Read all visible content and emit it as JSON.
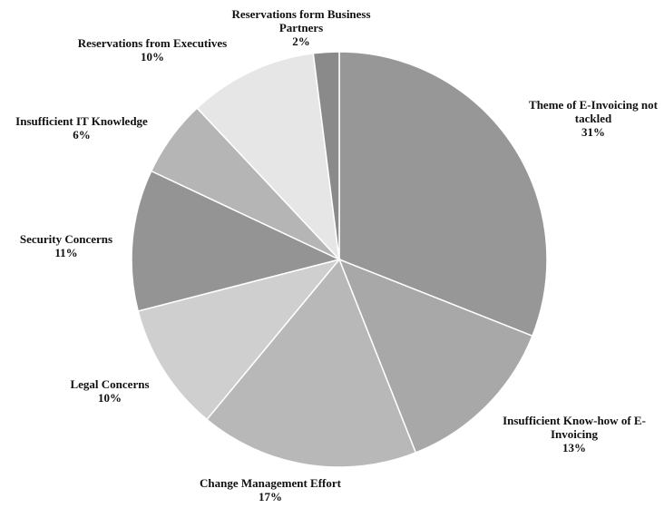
{
  "chart_data": {
    "type": "pie",
    "title": "",
    "slices": [
      {
        "label": [
          "Theme of E-Invoicing not",
          "tackled"
        ],
        "value": 31,
        "percent_label": "31%",
        "color": "#979797"
      },
      {
        "label": [
          "Insufficient Know-how of E-",
          "Invoicing"
        ],
        "value": 13,
        "percent_label": "13%",
        "color": "#a8a8a8"
      },
      {
        "label": [
          "Change Management Effort"
        ],
        "value": 17,
        "percent_label": "17%",
        "color": "#b8b8b8"
      },
      {
        "label": [
          "Legal Concerns"
        ],
        "value": 10,
        "percent_label": "10%",
        "color": "#cfcfcf"
      },
      {
        "label": [
          "Security Concerns"
        ],
        "value": 11,
        "percent_label": "11%",
        "color": "#949494"
      },
      {
        "label": [
          "Insufficient IT Knowledge"
        ],
        "value": 6,
        "percent_label": "6%",
        "color": "#b5b5b5"
      },
      {
        "label": [
          "Reservations from Executives"
        ],
        "value": 10,
        "percent_label": "10%",
        "color": "#e6e6e6"
      },
      {
        "label": [
          "Reservations form Business",
          "Partners"
        ],
        "value": 2,
        "percent_label": "2%",
        "color": "#8a8a8a"
      }
    ],
    "start_angle_deg": 0,
    "direction": "clockwise",
    "legend": "none"
  }
}
